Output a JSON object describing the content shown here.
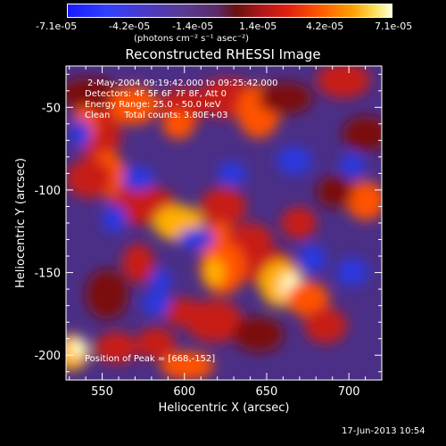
{
  "chart_data": {
    "type": "heatmap",
    "title": "Reconstructed RHESSI Image",
    "xlabel": "Heliocentric X (arcsec)",
    "ylabel": "Heliocentric Y (arcsec)",
    "xlim": [
      528,
      720
    ],
    "ylim": [
      -215,
      -25
    ],
    "x_ticks": [
      "550",
      "600",
      "650",
      "700"
    ],
    "y_ticks": [
      "-50",
      "-100",
      "-150",
      "-200"
    ],
    "colorbar": {
      "ticks": [
        "-7.1e-05",
        "-4.2e-05",
        "-1.4e-05",
        "1.4e-05",
        "4.2e-05",
        "7.1e-05"
      ],
      "label": "(photons cm⁻² s⁻¹ asec⁻²)",
      "range": [
        -7.1e-05,
        7.1e-05
      ],
      "colors": [
        "#1a1aff",
        "#5a2a6a",
        "#b01818",
        "#ff5a00",
        "#ffe060",
        "#ffffd8"
      ]
    },
    "annotations": [
      "2-May-2004 09:19:42.000 to 09:25:42.000",
      "Detectors: 4F 5F 6F 7F 8F, Att 0",
      "Energy Range: 25.0 - 50.0 keV",
      "Clean     Total counts: 3.80E+03",
      "Position of Peak = [668,-152]"
    ],
    "peak": {
      "x": 668,
      "y": -152
    },
    "timestamp": "17-Jun-2013 10:54"
  }
}
